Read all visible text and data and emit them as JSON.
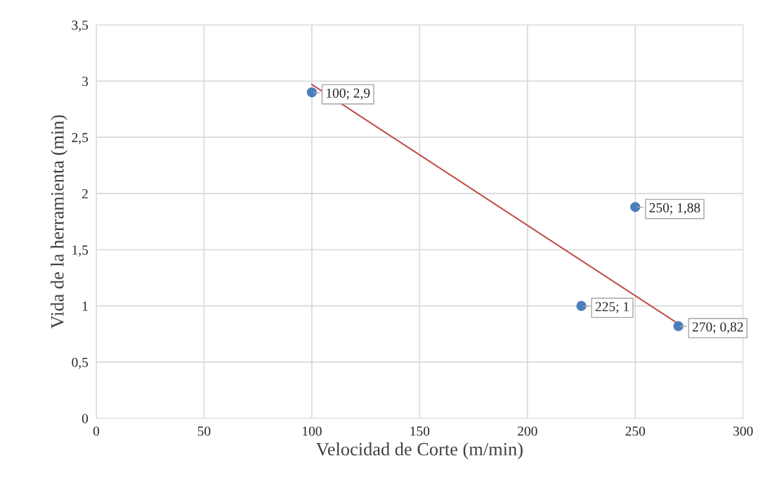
{
  "chart_data": {
    "type": "scatter",
    "xlabel": "Velocidad de Corte (m/min)",
    "ylabel": "Vida de la herramienta (min)",
    "series": [
      {
        "marker": "circle",
        "color": "#4a7ebb",
        "x": [
          100,
          225,
          250,
          270
        ],
        "values": [
          2.9,
          1,
          1.88,
          0.82
        ],
        "value_labels": [
          "100; 2,9",
          "225; 1",
          "250; 1,88",
          "270; 0,82"
        ]
      },
      {
        "type": "line",
        "color": "#c0504d",
        "x": [
          100,
          270
        ],
        "values": [
          2.97,
          0.84
        ]
      }
    ],
    "xlim": [
      0,
      300
    ],
    "xticks": [
      0,
      50,
      100,
      150,
      200,
      250,
      300
    ],
    "ylim": [
      0,
      3.5
    ],
    "yticks": [
      0,
      {
        "value": 0.5,
        "label": "0,5"
      },
      1,
      {
        "value": 1.5,
        "label": "1,5"
      },
      2,
      {
        "value": 2.5,
        "label": "2,5"
      },
      3,
      {
        "value": 3.5,
        "label": "3,5"
      }
    ],
    "grid": true,
    "legend": false
  }
}
